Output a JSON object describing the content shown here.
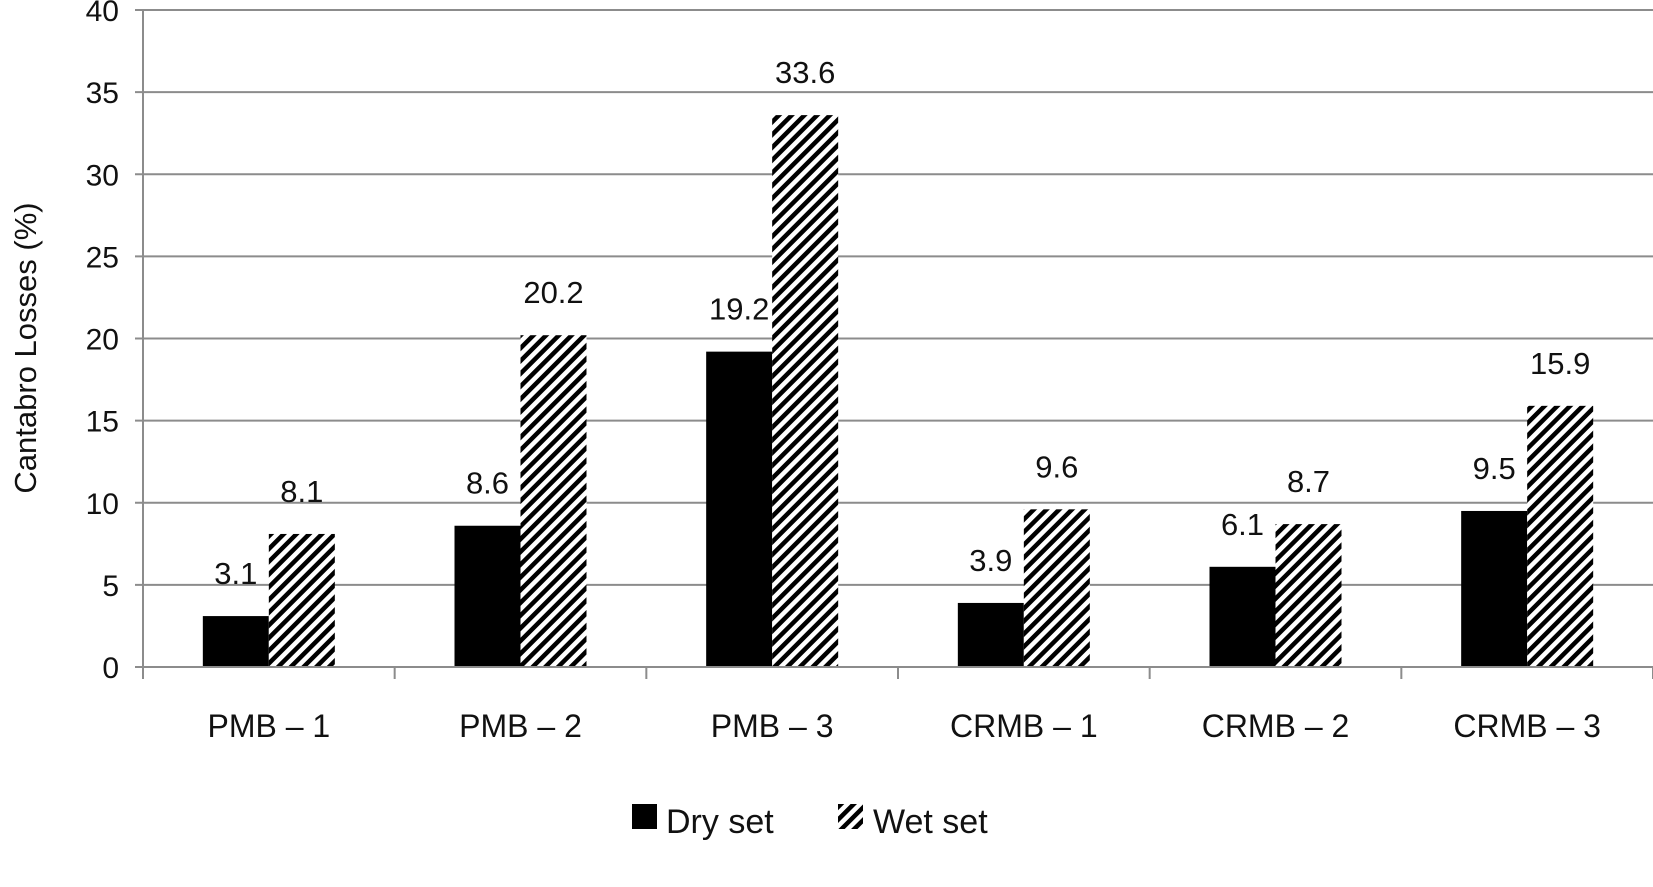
{
  "chart_data": {
    "type": "bar",
    "ylabel": "Cantabro Losses (%)",
    "xlabel": "",
    "ylim": [
      0,
      40
    ],
    "yticks": [
      0,
      5,
      10,
      15,
      20,
      25,
      30,
      35,
      40
    ],
    "grid": true,
    "legend_position": "bottom",
    "categories": [
      "PMB – 1",
      "PMB – 2",
      "PMB – 3",
      "CRMB – 1",
      "CRMB – 2",
      "CRMB – 3"
    ],
    "series": [
      {
        "name": "Dry set",
        "values": [
          3.1,
          8.6,
          19.2,
          3.9,
          6.1,
          9.5
        ],
        "labels": [
          "3.1",
          "8.6",
          "19.2",
          "3.9",
          "6.1",
          "9.5"
        ],
        "fill": "solid",
        "color": "#000000"
      },
      {
        "name": "Wet set",
        "values": [
          8.1,
          20.2,
          33.6,
          9.6,
          8.7,
          15.9
        ],
        "labels": [
          "8.1",
          "20.2",
          "33.6",
          "9.6",
          "8.7",
          "15.9"
        ],
        "fill": "diagonal-hatch",
        "color": "#000000"
      }
    ]
  }
}
